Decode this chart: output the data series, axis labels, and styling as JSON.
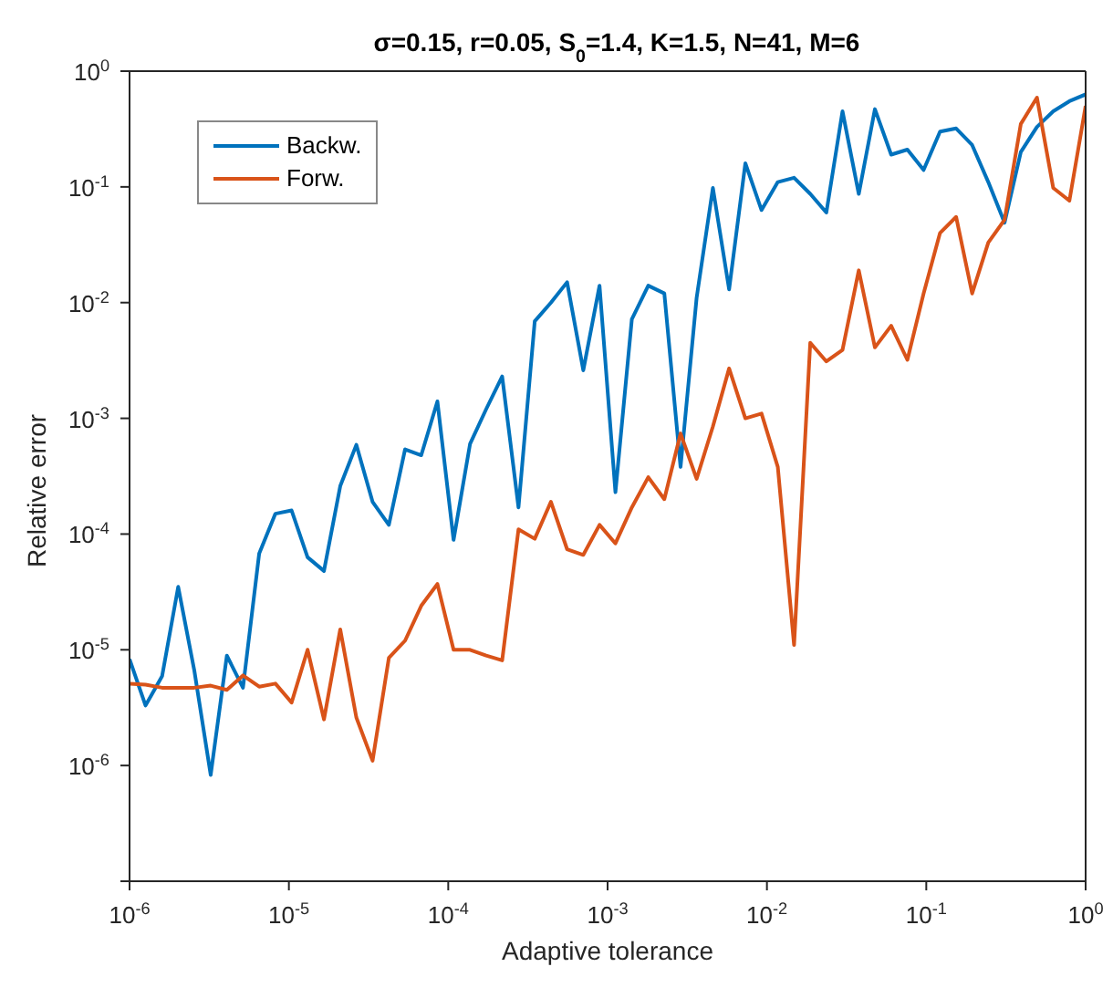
{
  "chart_data": {
    "type": "line",
    "title": "σ=0.15, r=0.05, S$_{0}$=1.4, K=1.5, N=41, M=6",
    "xlabel": "Adaptive tolerance",
    "ylabel": "Relative error",
    "log": "xy",
    "legend": "top left",
    "line_style": "solid",
    "marker": "none",
    "x": [
      1e-06,
      1.26e-06,
      1.6e-06,
      2.02e-06,
      2.55e-06,
      3.23e-06,
      4.08e-06,
      5.15e-06,
      6.51e-06,
      8.23e-06,
      1.04e-05,
      1.31e-05,
      1.66e-05,
      2.1e-05,
      2.65e-05,
      3.35e-05,
      4.24e-05,
      5.36e-05,
      6.77e-05,
      8.55e-05,
      0.000108,
      0.000137,
      0.000173,
      0.000218,
      0.000276,
      0.000349,
      0.000441,
      0.000557,
      0.000704,
      0.00089,
      0.00112,
      0.00142,
      0.0018,
      0.00227,
      0.00287,
      0.00362,
      0.00458,
      0.00579,
      0.00732,
      0.00925,
      0.0117,
      0.0148,
      0.0187,
      0.0236,
      0.0298,
      0.0377,
      0.0476,
      0.0602,
      0.0761,
      0.0962,
      0.122,
      0.154,
      0.194,
      0.245,
      0.31,
      0.392,
      0.495,
      0.626,
      0.791,
      1
    ],
    "series": [
      {
        "name": "Backw.",
        "color": "#0072bd",
        "values": [
          8.3e-06,
          3.3e-06,
          5.9e-06,
          3.5e-05,
          6.6e-06,
          8.3e-07,
          8.9e-06,
          4.7e-06,
          6.8e-05,
          0.00015,
          0.00016,
          6.3e-05,
          4.8e-05,
          0.00026,
          0.00059,
          0.00019,
          0.00012,
          0.00054,
          0.00048,
          0.0014,
          8.9e-05,
          0.0006,
          0.0012,
          0.0023,
          0.00017,
          0.0069,
          0.01,
          0.015,
          0.0026,
          0.014,
          0.00023,
          0.0072,
          0.014,
          0.012,
          0.00038,
          0.011,
          0.098,
          0.013,
          0.16,
          0.063,
          0.11,
          0.12,
          0.087,
          0.06,
          0.45,
          0.087,
          0.47,
          0.19,
          0.21,
          0.14,
          0.3,
          0.32,
          0.23,
          0.11,
          0.049,
          0.2,
          0.33,
          0.45,
          0.55,
          0.63
        ]
      },
      {
        "name": "Forw.",
        "color": "#d95319",
        "values": [
          5.1e-06,
          5e-06,
          4.7e-06,
          4.7e-06,
          4.7e-06,
          4.9e-06,
          4.5e-06,
          6e-06,
          4.8e-06,
          5.1e-06,
          3.5e-06,
          1e-05,
          2.5e-06,
          1.5e-05,
          2.6e-06,
          1.1e-06,
          8.5e-06,
          1.2e-05,
          2.4e-05,
          3.7e-05,
          1e-05,
          1e-05,
          8.9e-06,
          8.1e-06,
          0.00011,
          9.1e-05,
          0.00019,
          7.4e-05,
          6.6e-05,
          0.00012,
          8.3e-05,
          0.00017,
          0.00031,
          0.0002,
          0.00074,
          0.0003,
          0.00085,
          0.0027,
          0.001,
          0.0011,
          0.00038,
          1.1e-05,
          0.0045,
          0.0031,
          0.0039,
          0.019,
          0.0041,
          0.0063,
          0.0032,
          0.012,
          0.04,
          0.055,
          0.012,
          0.033,
          0.052,
          0.35,
          0.59,
          0.098,
          0.076,
          0.5
        ]
      }
    ],
    "xlim": [
      1e-06,
      1
    ],
    "xticks": [
      {
        "value": 1e-06,
        "label": "10$^{-6}$"
      },
      {
        "value": 1e-05,
        "label": "10$^{-5}$"
      },
      {
        "value": 0.0001,
        "label": "10$^{-4}$"
      },
      {
        "value": 0.001,
        "label": "10$^{-3}$"
      },
      {
        "value": 0.01,
        "label": "10$^{-2}$"
      },
      {
        "value": 0.1,
        "label": "10$^{-1}$"
      },
      {
        "value": 1,
        "label": "10$^{0}$"
      }
    ],
    "ylim": [
      1e-07,
      1
    ],
    "yticks": [
      {
        "value": 1e-07,
        "label": null
      },
      {
        "value": 1e-06,
        "label": "10$^{-6}$"
      },
      {
        "value": 1e-05,
        "label": "10$^{-5}$"
      },
      {
        "value": 0.0001,
        "label": "10$^{-4}$"
      },
      {
        "value": 0.001,
        "label": "10$^{-3}$"
      },
      {
        "value": 0.01,
        "label": "10$^{-2}$"
      },
      {
        "value": 0.1,
        "label": "10$^{-1}$"
      },
      {
        "value": 1,
        "label": "10$^{0}$"
      }
    ]
  }
}
